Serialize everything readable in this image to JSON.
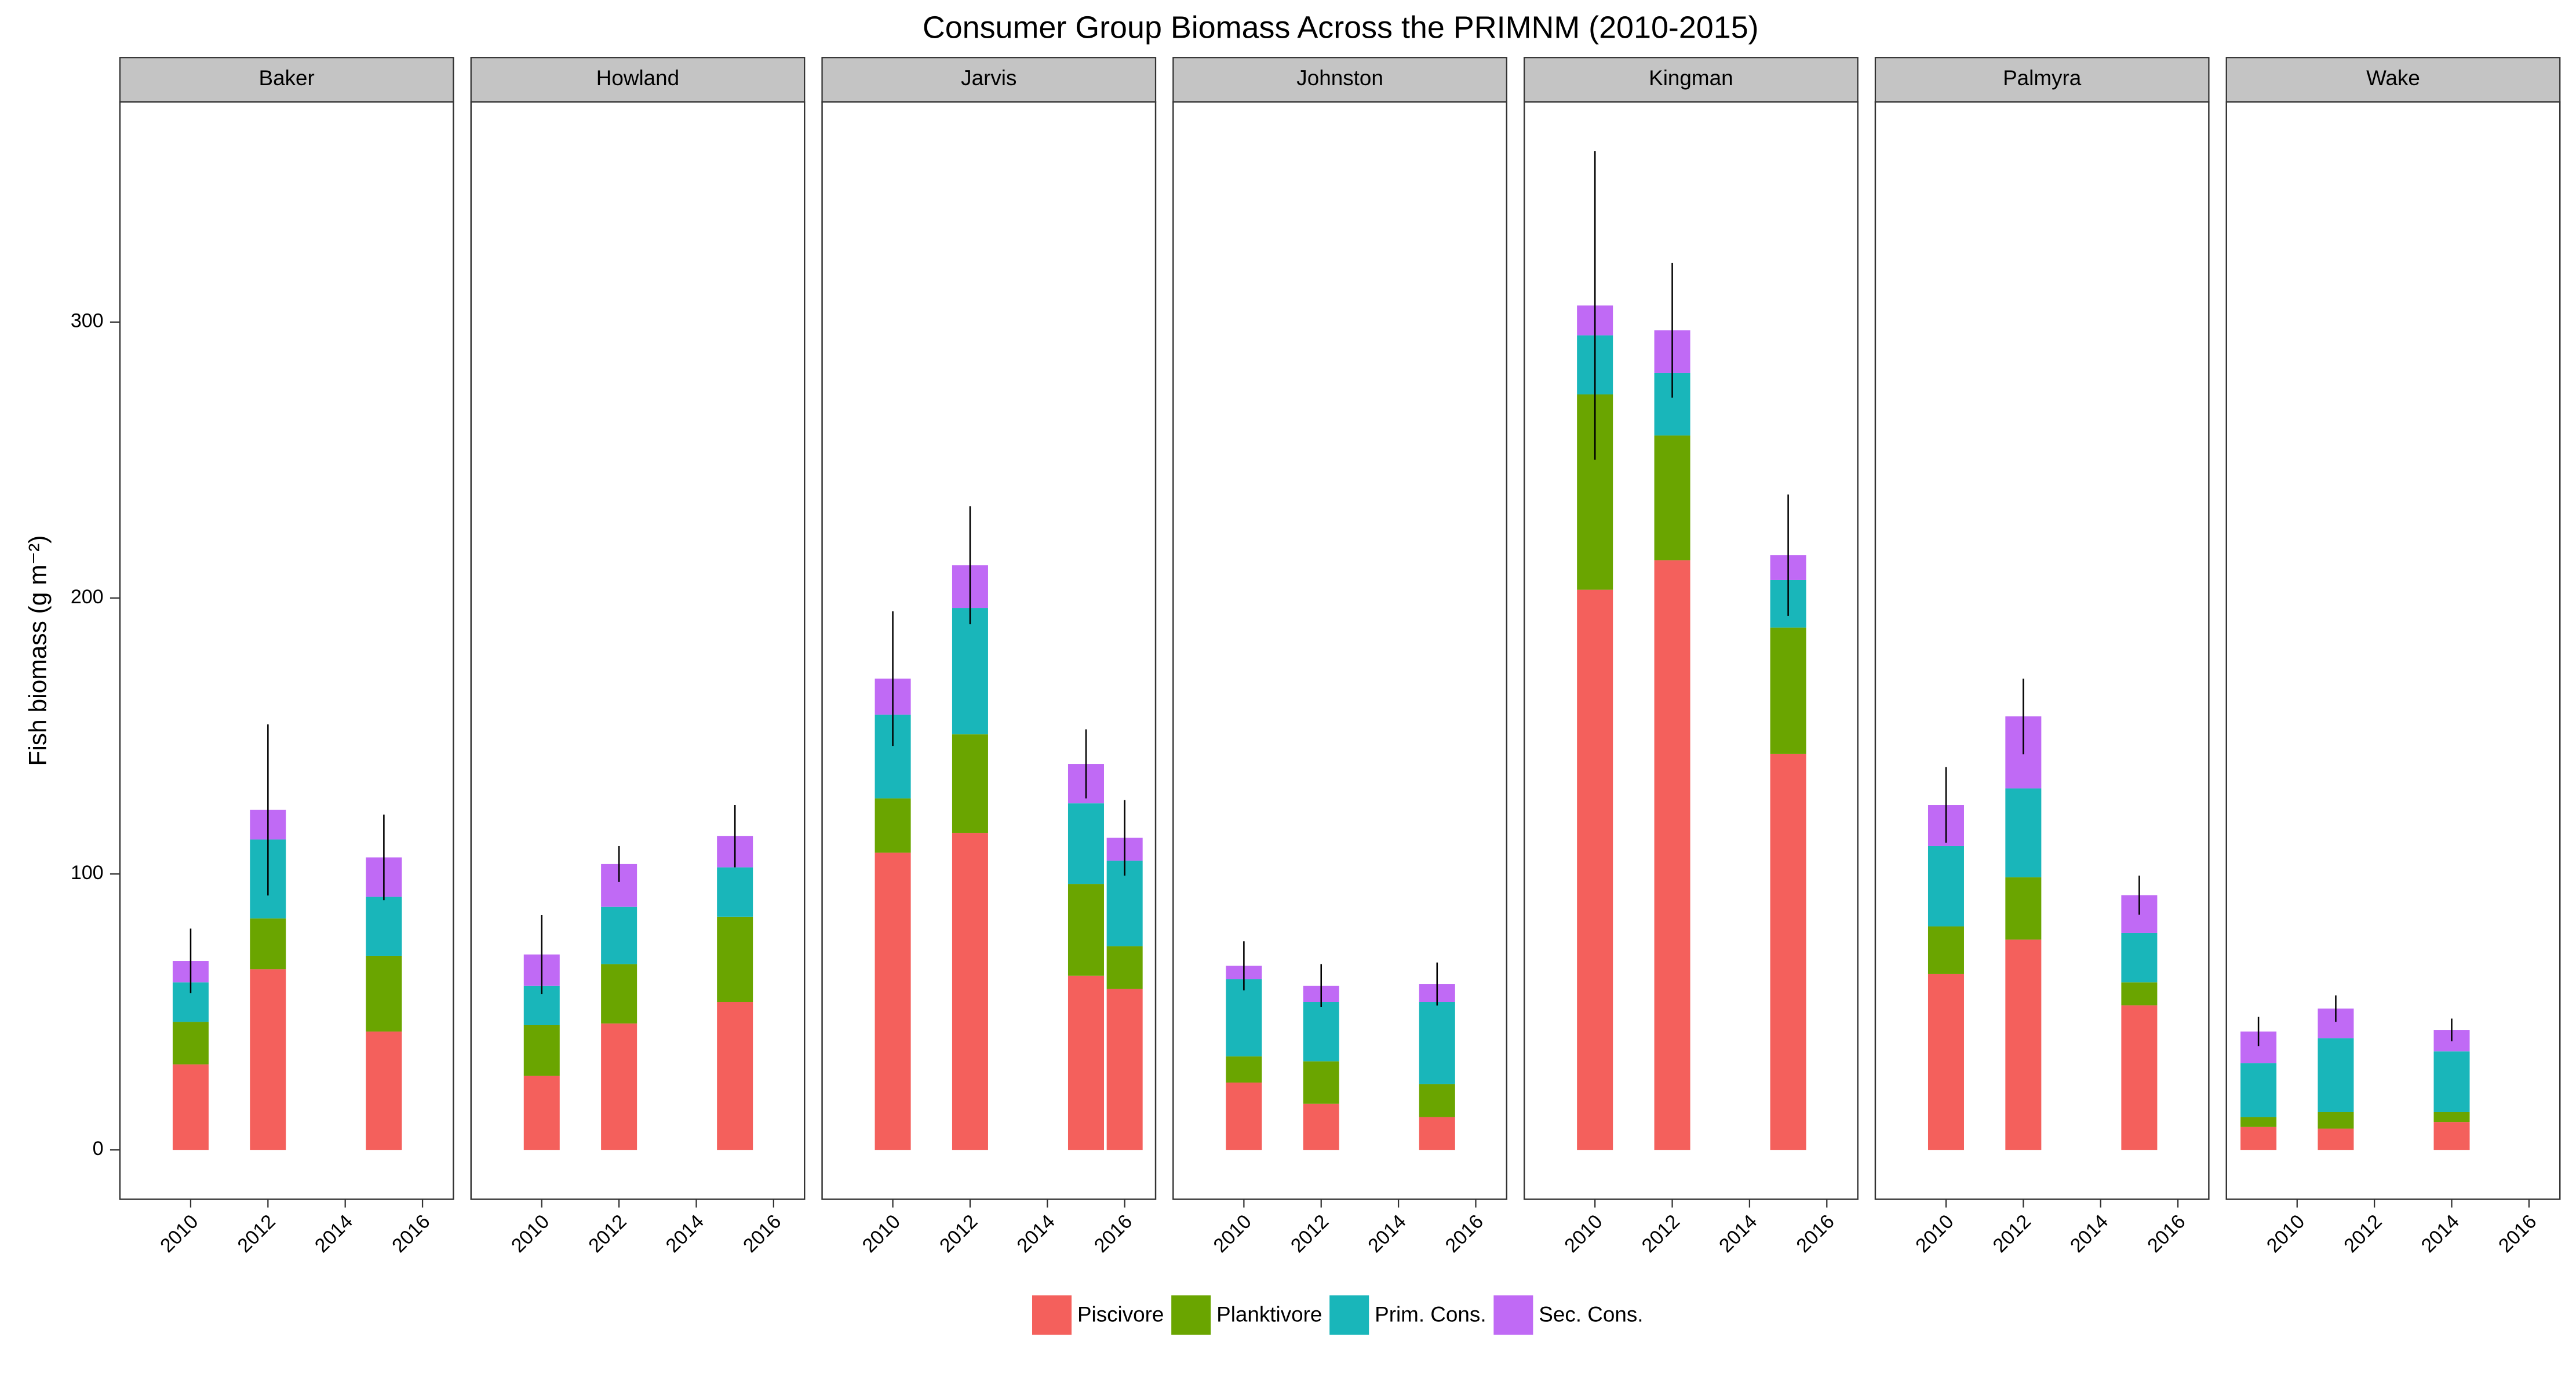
{
  "chart_data": {
    "type": "bar",
    "title": "Consumer Group Biomass Across the PRIMNM (2010-2015)",
    "ylabel": "Fish biomass (g m⁻²)",
    "ylim": [
      -17.9,
      379.8
    ],
    "yticks": [
      0,
      100,
      200,
      300
    ],
    "xlim": [
      2008.17,
      2016.8
    ],
    "xticks": [
      2010,
      2012,
      2014,
      2016
    ],
    "grid": false,
    "legend": "bottom",
    "series": [
      {
        "name": "Piscivore",
        "color": "#f4605c"
      },
      {
        "name": "Planktivore",
        "color": "#6aa500"
      },
      {
        "name": "Prim. Cons.",
        "color": "#19b6ba"
      },
      {
        "name": "Sec. Cons.",
        "color": "#c06af5"
      }
    ],
    "facets": [
      {
        "title": "Baker",
        "x": [
          2010,
          2012,
          2015
        ],
        "series": [
          {
            "values": [
              31,
              65.5,
              42.9
            ]
          },
          {
            "values": [
              15.4,
              18.4,
              27.3
            ]
          },
          {
            "values": [
              14.3,
              28.6,
              21.5
            ]
          },
          {
            "values": [
              7.8,
              10.7,
              14.3
            ]
          }
        ],
        "errors": [
          11.7,
          31,
          15.5
        ]
      },
      {
        "title": "Howland",
        "x": [
          2010,
          2012,
          2015
        ],
        "series": [
          {
            "values": [
              26.8,
              45.8,
              53.6
            ]
          },
          {
            "values": [
              18.4,
              21.5,
              30.9
            ]
          },
          {
            "values": [
              14.3,
              20.8,
              17.9
            ]
          },
          {
            "values": [
              11.3,
              15.5,
              11.3
            ]
          }
        ],
        "errors": [
          14.3,
          6.5,
          11.3
        ]
      },
      {
        "title": "Jarvis",
        "x": [
          2010,
          2012,
          2015,
          2016
        ],
        "series": [
          {
            "values": [
              107.7,
              114.9,
              63.1,
              58.3
            ]
          },
          {
            "values": [
              19.7,
              35.7,
              33.3,
              15.5
            ]
          },
          {
            "values": [
              30.3,
              45.8,
              29.2,
              31
            ]
          },
          {
            "values": [
              13.1,
              15.5,
              14.3,
              8.3
            ]
          }
        ],
        "errors": [
          24.4,
          21.4,
          12.5,
          13.7
        ]
      },
      {
        "title": "Johnston",
        "x": [
          2010,
          2012,
          2015
        ],
        "series": [
          {
            "values": [
              24.4,
              16.7,
              11.9
            ]
          },
          {
            "values": [
              9.5,
              15.4,
              11.9
            ]
          },
          {
            "values": [
              28,
              21.5,
              29.8
            ]
          },
          {
            "values": [
              4.8,
              5.9,
              6.5
            ]
          }
        ],
        "errors": [
          8.9,
          7.8,
          7.8
        ]
      },
      {
        "title": "Kingman",
        "x": [
          2010,
          2012,
          2015
        ],
        "series": [
          {
            "values": [
              203,
              213.7,
              143.5
            ]
          },
          {
            "values": [
              70.8,
              45.2,
              45.8
            ]
          },
          {
            "values": [
              21.4,
              22.6,
              17.2
            ]
          },
          {
            "values": [
              10.8,
              15.5,
              9
            ]
          }
        ],
        "errors": [
          55.9,
          24.4,
          22
        ]
      },
      {
        "title": "Palmyra",
        "x": [
          2010,
          2012,
          2015
        ],
        "series": [
          {
            "values": [
              63.7,
              76.2,
              52.4
            ]
          },
          {
            "values": [
              17.3,
              22.6,
              8.3
            ]
          },
          {
            "values": [
              29.1,
              32.2,
              17.9
            ]
          },
          {
            "values": [
              14.9,
              26.1,
              13.7
            ]
          }
        ],
        "errors": [
          13.7,
          13.7,
          7.1
        ]
      },
      {
        "title": "Wake",
        "x": [
          2009,
          2011,
          2014
        ],
        "series": [
          {
            "values": [
              8.3,
              7.7,
              10.1
            ]
          },
          {
            "values": [
              3.6,
              6,
              3.6
            ]
          },
          {
            "values": [
              19.6,
              26.8,
              22
            ]
          },
          {
            "values": [
              11.4,
              10.7,
              7.8
            ]
          }
        ],
        "errors": [
          5.3,
          4.8,
          4.1
        ]
      }
    ]
  }
}
